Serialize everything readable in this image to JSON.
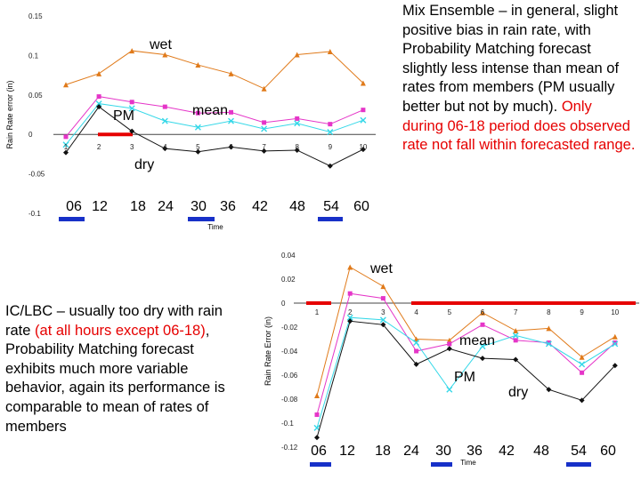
{
  "notes": {
    "top": {
      "text_start": "Mix Ensemble – in general, slight positive bias in rain rate, with Probability Matching forecast slightly less intense than mean of rates from members (PM usually better but not by much).  ",
      "text_red": "Only during 06-18 period does observed rate not fall within forecasted range."
    },
    "bottom": {
      "text_start": "IC/LBC – usually too dry with rain rate ",
      "text_red": "(at all hours except 06-18)",
      "text_end": ", Probability Matching forecast exhibits much more variable behavior, again its performance is comparable to mean of rates of members"
    }
  },
  "chart_data": [
    {
      "type": "line",
      "ylabel": "Rain Rate error (in)",
      "xlabel": "Time",
      "ylim": [
        -0.1,
        0.15
      ],
      "yticks": [
        "0.15",
        "0.1",
        "0.05",
        "0",
        "-0.05",
        "-0.1"
      ],
      "yticks_values": [
        0.15,
        0.1,
        0.05,
        0,
        -0.05,
        -0.1
      ],
      "x": [
        1,
        2,
        3,
        4,
        5,
        6,
        7,
        8,
        9,
        10
      ],
      "xtick_labels": [
        "1",
        "2",
        "3",
        "4",
        "5",
        "6",
        "7",
        "8",
        "9",
        "10"
      ],
      "hours": [
        "06",
        "12",
        "18",
        "24",
        "30",
        "36",
        "42",
        "48",
        "54",
        "60"
      ],
      "series": [
        {
          "name": "wet",
          "color": "#e07a1a",
          "marker": "triangle",
          "values": [
            0.063,
            0.077,
            0.106,
            0.101,
            0.088,
            0.077,
            0.058,
            0.101,
            0.105,
            0.065
          ]
        },
        {
          "name": "",
          "color": "#e535c8",
          "marker": "square",
          "values": [
            -0.003,
            0.048,
            0.041,
            0.035,
            0.027,
            0.028,
            0.015,
            0.02,
            0.013,
            0.031
          ]
        },
        {
          "name": "",
          "color": "#35d8e8",
          "marker": "x",
          "values": [
            -0.013,
            0.039,
            0.033,
            0.017,
            0.009,
            0.017,
            0.007,
            0.014,
            0.003,
            0.018
          ]
        },
        {
          "name": "",
          "color": "#111111",
          "marker": "diamond",
          "values": [
            -0.023,
            0.035,
            0.004,
            -0.018,
            -0.022,
            -0.016,
            -0.021,
            -0.02,
            -0.04,
            -0.019
          ]
        }
      ],
      "annotations": [
        {
          "text": "wet"
        },
        {
          "text": "mean"
        },
        {
          "text": "PM"
        },
        {
          "text": "dry"
        }
      ],
      "markers": {
        "red_bar_color": "#e60000",
        "blue_bar_color": "#1730c8"
      }
    },
    {
      "type": "line",
      "ylabel": "Rain Rate Error (in)",
      "xlabel": "Time",
      "ylim": [
        -0.12,
        0.04
      ],
      "yticks": [
        "0.04",
        "0.02",
        "0",
        "-0.02",
        "-0.04",
        "-0.06",
        "-0.08",
        "-0.1",
        "-0.12"
      ],
      "yticks_values": [
        0.04,
        0.02,
        0,
        -0.02,
        -0.04,
        -0.06,
        -0.08,
        -0.1,
        -0.12
      ],
      "x": [
        1,
        2,
        3,
        4,
        5,
        6,
        7,
        8,
        9,
        10
      ],
      "xtick_labels": [
        "1",
        "2",
        "3",
        "4",
        "5",
        "6",
        "7",
        "8",
        "9",
        "10"
      ],
      "hours": [
        "06",
        "12",
        "18",
        "24",
        "30",
        "36",
        "42",
        "48",
        "54",
        "60"
      ],
      "series": [
        {
          "name": "wet",
          "color": "#e07a1a",
          "marker": "triangle",
          "values": [
            -0.077,
            0.03,
            0.014,
            -0.03,
            -0.031,
            -0.008,
            -0.023,
            -0.021,
            -0.045,
            -0.028
          ]
        },
        {
          "name": "",
          "color": "#e535c8",
          "marker": "square",
          "values": [
            -0.093,
            0.008,
            0.004,
            -0.04,
            -0.034,
            -0.018,
            -0.031,
            -0.033,
            -0.058,
            -0.033
          ]
        },
        {
          "name": "",
          "color": "#35d8e8",
          "marker": "x",
          "values": [
            -0.104,
            -0.012,
            -0.014,
            -0.033,
            -0.072,
            -0.036,
            -0.027,
            -0.034,
            -0.051,
            -0.034
          ]
        },
        {
          "name": "",
          "color": "#111111",
          "marker": "diamond",
          "values": [
            -0.112,
            -0.015,
            -0.018,
            -0.051,
            -0.038,
            -0.046,
            -0.047,
            -0.072,
            -0.081,
            -0.052
          ]
        }
      ],
      "annotations": [
        {
          "text": "wet"
        },
        {
          "text": "mean"
        },
        {
          "text": "PM"
        },
        {
          "text": "dry"
        }
      ],
      "markers": {
        "red_bar_color": "#e60000",
        "blue_bar_color": "#1730c8"
      }
    }
  ]
}
